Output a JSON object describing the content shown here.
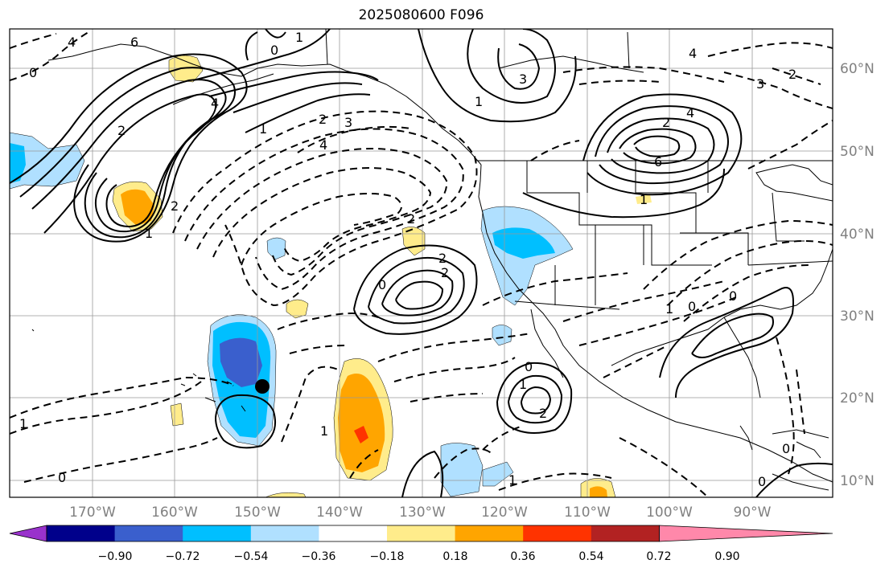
{
  "title": "2025080600 F096",
  "map": {
    "lon_labels": [
      "170°W",
      "160°W",
      "150°W",
      "140°W",
      "130°W",
      "120°W",
      "110°W",
      "100°W",
      "90°W"
    ],
    "lat_labels": [
      "60°N",
      "50°N",
      "40°N",
      "30°N",
      "20°N",
      "10°N"
    ],
    "contour_labels": [
      "6",
      "4",
      "0",
      "1",
      "4",
      "2",
      "0",
      "1",
      "2",
      "3",
      "4",
      "3",
      "1",
      "4",
      "3",
      "2",
      "6",
      "4",
      "2",
      "1",
      "2",
      "2",
      "0",
      "1",
      "2",
      "2",
      "1",
      "0",
      "0",
      "1",
      "1",
      "2",
      "0",
      "1",
      "0",
      "1",
      "0",
      "0"
    ],
    "line_styles": {
      "positive": "solid",
      "negative": "dashed"
    },
    "marker": "filled-black-circle",
    "grid": true
  },
  "colorbar": {
    "tick_labels": [
      "−0.90",
      "−0.72",
      "−0.54",
      "−0.36",
      "−0.18",
      "0.18",
      "0.36",
      "0.54",
      "0.72",
      "0.90"
    ],
    "colors": [
      "#9932cc",
      "#00008b",
      "#3a5fcd",
      "#00bfff",
      "#b0e0ff",
      "#ffffff",
      "#ffec8b",
      "#ffa500",
      "#ff3300",
      "#b22222",
      "#ff88aa"
    ],
    "extend": "both"
  }
}
